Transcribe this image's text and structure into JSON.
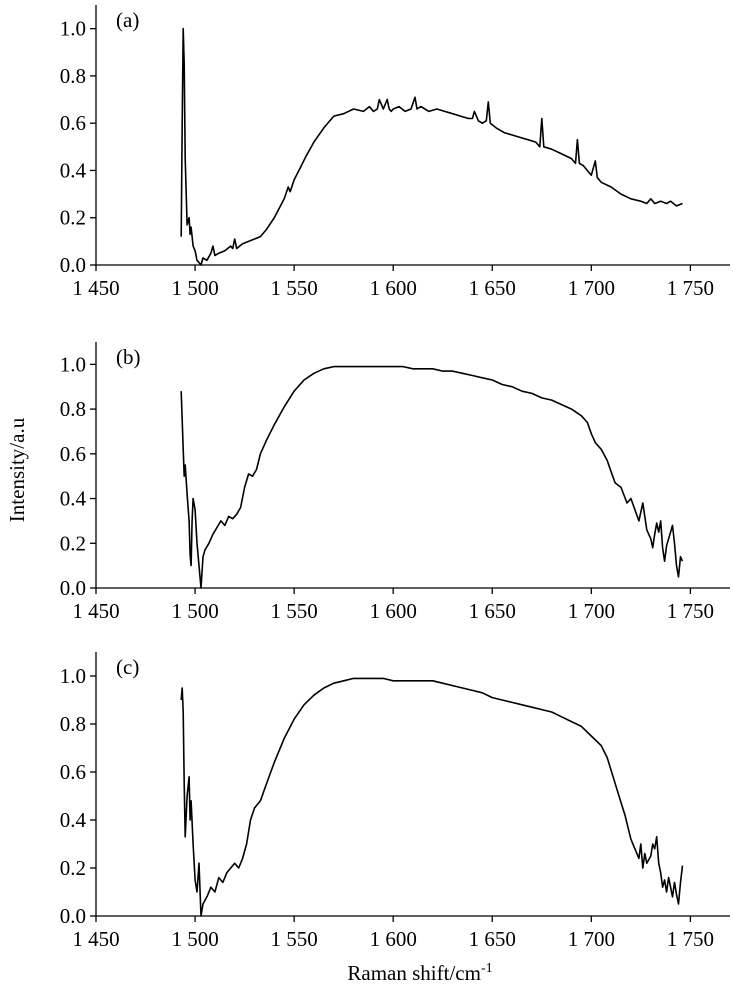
{
  "figure": {
    "ylabel": "Intensity/a.u",
    "xlabel_main": "Raman shift/cm",
    "xlabel_sup": "-1"
  },
  "chart_data": [
    {
      "type": "line",
      "label": "(a)",
      "xlim": [
        1450,
        1770
      ],
      "ylim": [
        0,
        1.1
      ],
      "xticks": [
        1450,
        1500,
        1550,
        1600,
        1650,
        1700,
        1750
      ],
      "xtick_labels": [
        "1 450",
        "1 500",
        "1 550",
        "1 600",
        "1 650",
        "1 700",
        "1 750"
      ],
      "yticks": [
        0,
        0.2,
        0.4,
        0.6,
        0.8,
        1.0
      ],
      "ytick_labels": [
        "0.0",
        "0.2",
        "0.4",
        "0.6",
        "0.8",
        "1.0"
      ],
      "series": [
        {
          "x": [
            1493,
            1493.5,
            1494,
            1494.5,
            1495,
            1496,
            1497,
            1497.5,
            1498,
            1499,
            1500,
            1501,
            1502,
            1503,
            1504,
            1506,
            1508,
            1509,
            1510,
            1512,
            1515,
            1518,
            1519,
            1520,
            1521,
            1524,
            1527,
            1530,
            1533,
            1536,
            1540,
            1545,
            1547,
            1548,
            1550,
            1553,
            1556,
            1560,
            1565,
            1570,
            1575,
            1580,
            1585,
            1588,
            1590,
            1592,
            1593,
            1595,
            1597,
            1598,
            1599,
            1600,
            1603,
            1606,
            1609,
            1611,
            1612,
            1614,
            1618,
            1622,
            1626,
            1630,
            1634,
            1638,
            1640,
            1641,
            1643,
            1645,
            1647,
            1648,
            1649,
            1652,
            1656,
            1660,
            1664,
            1668,
            1672,
            1674,
            1675,
            1676,
            1680,
            1685,
            1690,
            1692,
            1693,
            1694,
            1696,
            1700,
            1702,
            1703,
            1705,
            1710,
            1715,
            1720,
            1725,
            1728,
            1730,
            1732,
            1735,
            1738,
            1740,
            1743,
            1746
          ],
          "y": [
            0.12,
            0.6,
            1.0,
            0.85,
            0.45,
            0.17,
            0.2,
            0.13,
            0.16,
            0.08,
            0.06,
            0.02,
            0.01,
            0.0,
            0.03,
            0.02,
            0.05,
            0.08,
            0.04,
            0.05,
            0.06,
            0.08,
            0.07,
            0.11,
            0.07,
            0.09,
            0.1,
            0.11,
            0.12,
            0.15,
            0.2,
            0.28,
            0.33,
            0.31,
            0.36,
            0.41,
            0.46,
            0.52,
            0.58,
            0.63,
            0.64,
            0.66,
            0.65,
            0.67,
            0.65,
            0.66,
            0.7,
            0.66,
            0.7,
            0.66,
            0.65,
            0.66,
            0.67,
            0.65,
            0.66,
            0.71,
            0.66,
            0.67,
            0.65,
            0.66,
            0.65,
            0.64,
            0.63,
            0.62,
            0.62,
            0.65,
            0.61,
            0.6,
            0.61,
            0.69,
            0.6,
            0.58,
            0.56,
            0.55,
            0.54,
            0.53,
            0.52,
            0.5,
            0.62,
            0.5,
            0.49,
            0.47,
            0.45,
            0.43,
            0.53,
            0.43,
            0.42,
            0.38,
            0.44,
            0.37,
            0.35,
            0.33,
            0.3,
            0.28,
            0.27,
            0.26,
            0.28,
            0.26,
            0.27,
            0.26,
            0.27,
            0.25,
            0.26
          ]
        }
      ]
    },
    {
      "type": "line",
      "label": "(b)",
      "xlim": [
        1450,
        1770
      ],
      "ylim": [
        0,
        1.1
      ],
      "xticks": [
        1450,
        1500,
        1550,
        1600,
        1650,
        1700,
        1750
      ],
      "xtick_labels": [
        "1 450",
        "1 500",
        "1 550",
        "1 600",
        "1 650",
        "1 700",
        "1 750"
      ],
      "yticks": [
        0,
        0.2,
        0.4,
        0.6,
        0.8,
        1.0
      ],
      "ytick_labels": [
        "0.0",
        "0.2",
        "0.4",
        "0.6",
        "0.8",
        "1.0"
      ],
      "series": [
        {
          "x": [
            1493,
            1493.5,
            1494,
            1494.5,
            1495,
            1496,
            1497,
            1497.5,
            1498,
            1498.5,
            1499,
            1500,
            1501,
            1502,
            1503,
            1504,
            1505,
            1507,
            1509,
            1511,
            1513,
            1515,
            1517,
            1519,
            1521,
            1523,
            1525,
            1527,
            1529,
            1531,
            1533,
            1536,
            1540,
            1545,
            1550,
            1555,
            1560,
            1565,
            1570,
            1575,
            1580,
            1585,
            1590,
            1595,
            1600,
            1605,
            1610,
            1615,
            1620,
            1625,
            1630,
            1635,
            1640,
            1645,
            1650,
            1655,
            1660,
            1665,
            1670,
            1675,
            1680,
            1685,
            1690,
            1695,
            1698,
            1700,
            1702,
            1705,
            1708,
            1710,
            1712,
            1715,
            1718,
            1720,
            1722,
            1724,
            1726,
            1728,
            1730,
            1731,
            1732,
            1733,
            1734,
            1735,
            1736,
            1737,
            1738,
            1739,
            1740,
            1741,
            1742,
            1743,
            1744,
            1745,
            1746
          ],
          "y": [
            0.88,
            0.75,
            0.62,
            0.5,
            0.55,
            0.42,
            0.3,
            0.15,
            0.1,
            0.3,
            0.4,
            0.35,
            0.2,
            0.1,
            0.0,
            0.14,
            0.17,
            0.2,
            0.24,
            0.27,
            0.3,
            0.28,
            0.32,
            0.31,
            0.33,
            0.36,
            0.45,
            0.51,
            0.5,
            0.53,
            0.6,
            0.66,
            0.73,
            0.81,
            0.88,
            0.93,
            0.96,
            0.98,
            0.99,
            0.99,
            0.99,
            0.99,
            0.99,
            0.99,
            0.99,
            0.99,
            0.98,
            0.98,
            0.98,
            0.97,
            0.97,
            0.96,
            0.95,
            0.94,
            0.93,
            0.91,
            0.9,
            0.88,
            0.87,
            0.85,
            0.84,
            0.82,
            0.8,
            0.77,
            0.74,
            0.69,
            0.65,
            0.62,
            0.57,
            0.52,
            0.47,
            0.45,
            0.38,
            0.4,
            0.35,
            0.3,
            0.38,
            0.26,
            0.22,
            0.18,
            0.24,
            0.29,
            0.25,
            0.3,
            0.18,
            0.12,
            0.19,
            0.22,
            0.25,
            0.28,
            0.2,
            0.1,
            0.05,
            0.14,
            0.12
          ]
        }
      ]
    },
    {
      "type": "line",
      "label": "(c)",
      "xlim": [
        1450,
        1770
      ],
      "ylim": [
        0,
        1.1
      ],
      "xticks": [
        1450,
        1500,
        1550,
        1600,
        1650,
        1700,
        1750
      ],
      "xtick_labels": [
        "1 450",
        "1 500",
        "1 550",
        "1 600",
        "1 650",
        "1 700",
        "1 750"
      ],
      "yticks": [
        0,
        0.2,
        0.4,
        0.6,
        0.8,
        1.0
      ],
      "ytick_labels": [
        "0.0",
        "0.2",
        "0.4",
        "0.6",
        "0.8",
        "1.0"
      ],
      "series": [
        {
          "x": [
            1493,
            1493.5,
            1494,
            1494.5,
            1495,
            1496,
            1497,
            1497.5,
            1498,
            1499,
            1500,
            1501,
            1502,
            1503,
            1504,
            1506,
            1508,
            1510,
            1512,
            1514,
            1516,
            1518,
            1520,
            1522,
            1524,
            1526,
            1528,
            1530,
            1533,
            1536,
            1540,
            1545,
            1550,
            1555,
            1560,
            1565,
            1570,
            1575,
            1580,
            1585,
            1590,
            1595,
            1600,
            1605,
            1610,
            1615,
            1620,
            1625,
            1630,
            1635,
            1640,
            1645,
            1650,
            1655,
            1660,
            1665,
            1670,
            1675,
            1680,
            1685,
            1690,
            1695,
            1700,
            1705,
            1708,
            1711,
            1714,
            1717,
            1720,
            1722,
            1724,
            1725,
            1726,
            1727,
            1728,
            1730,
            1731,
            1732,
            1733,
            1734,
            1735,
            1736,
            1737,
            1738,
            1739,
            1740,
            1741,
            1742,
            1743,
            1744,
            1745,
            1746
          ],
          "y": [
            0.9,
            0.95,
            0.85,
            0.55,
            0.33,
            0.5,
            0.58,
            0.4,
            0.48,
            0.3,
            0.15,
            0.1,
            0.22,
            0.0,
            0.05,
            0.08,
            0.12,
            0.1,
            0.16,
            0.14,
            0.18,
            0.2,
            0.22,
            0.2,
            0.24,
            0.3,
            0.4,
            0.45,
            0.48,
            0.55,
            0.64,
            0.74,
            0.82,
            0.88,
            0.92,
            0.95,
            0.97,
            0.98,
            0.99,
            0.99,
            0.99,
            0.99,
            0.98,
            0.98,
            0.98,
            0.98,
            0.98,
            0.97,
            0.96,
            0.95,
            0.94,
            0.93,
            0.91,
            0.9,
            0.89,
            0.88,
            0.87,
            0.86,
            0.85,
            0.83,
            0.81,
            0.79,
            0.75,
            0.71,
            0.66,
            0.58,
            0.5,
            0.42,
            0.32,
            0.28,
            0.24,
            0.3,
            0.2,
            0.26,
            0.22,
            0.25,
            0.3,
            0.28,
            0.33,
            0.22,
            0.18,
            0.12,
            0.15,
            0.1,
            0.16,
            0.12,
            0.08,
            0.14,
            0.09,
            0.05,
            0.14,
            0.21
          ]
        }
      ]
    }
  ]
}
